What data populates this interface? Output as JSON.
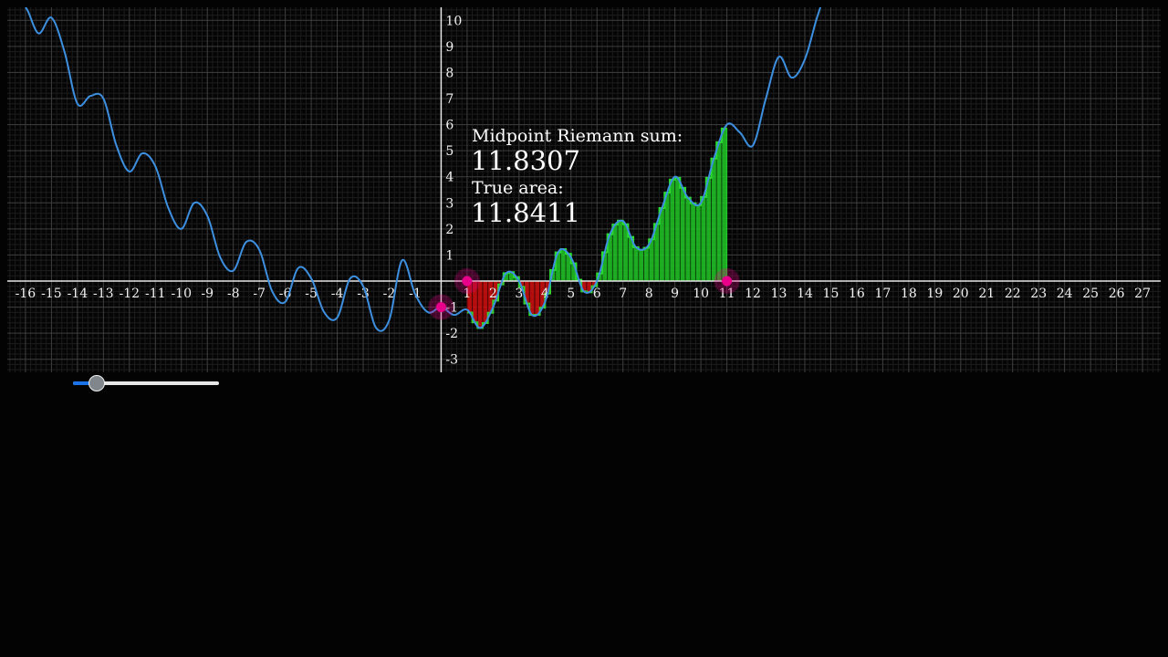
{
  "info": {
    "midpoint_label": "Midpoint Riemann sum:",
    "midpoint_value": "11.8307",
    "true_label": "True area:",
    "true_value": "11.8411"
  },
  "chart_data": {
    "type": "line",
    "title": "",
    "xlabel": "",
    "ylabel": "",
    "xlim": [
      -16.7,
      27.7
    ],
    "ylim": [
      -3.5,
      10.5
    ],
    "x_ticks": [
      -16,
      -15,
      -14,
      -13,
      -12,
      -11,
      -10,
      -9,
      -8,
      -7,
      -6,
      -5,
      -4,
      -3,
      -2,
      -1,
      1,
      2,
      3,
      4,
      5,
      6,
      7,
      8,
      9,
      10,
      11,
      12,
      13,
      14,
      15,
      16,
      17,
      18,
      19,
      20,
      21,
      22,
      23,
      24,
      25,
      26,
      27
    ],
    "y_ticks": [
      -3,
      -2,
      -1,
      1,
      2,
      3,
      4,
      5,
      6,
      7,
      8,
      9,
      10
    ],
    "grid": true,
    "curve_x": [
      -16,
      -15.5,
      -15,
      -14.5,
      -14,
      -13.5,
      -13,
      -12.5,
      -12,
      -11.5,
      -11,
      -10.5,
      -10,
      -9.5,
      -9,
      -8.5,
      -8,
      -7.5,
      -7,
      -6.5,
      -6,
      -5.5,
      -5,
      -4.5,
      -4,
      -3.5,
      -3,
      -2.5,
      -2,
      -1.5,
      -1,
      -0.5,
      0,
      0.5,
      1,
      1.5,
      2,
      2.5,
      3,
      3.5,
      4,
      4.5,
      5,
      5.5,
      6,
      6.5,
      7,
      7.5,
      8,
      8.5,
      9,
      9.5,
      10,
      10.5,
      11,
      11.5,
      12,
      12.5,
      13,
      13.5,
      14,
      14.5,
      15
    ],
    "curve_y": [
      10.5,
      9.5,
      10.1,
      8.8,
      6.8,
      7.1,
      7.0,
      5.2,
      4.2,
      4.9,
      4.4,
      2.8,
      2.0,
      3.0,
      2.5,
      0.9,
      0.4,
      1.5,
      1.2,
      -0.4,
      -0.8,
      0.5,
      0.1,
      -1.2,
      -1.4,
      0.1,
      -0.2,
      -1.8,
      -1.5,
      0.8,
      -0.5,
      -1.2,
      -1.0,
      -1.3,
      -1.1,
      -1.8,
      -1.0,
      0.3,
      0.0,
      -1.3,
      -0.8,
      1.1,
      0.9,
      -0.4,
      0.0,
      1.8,
      2.3,
      1.3,
      1.4,
      2.8,
      4.0,
      3.2,
      3.0,
      4.7,
      6.0,
      5.7,
      5.2,
      7.0,
      8.6,
      7.8,
      8.5,
      10.2,
      11.5
    ],
    "riemann_sum": {
      "method": "midpoint",
      "a": 1,
      "b": 11,
      "n": 50,
      "positive_color": "#22c928",
      "negative_color": "#d20f0f"
    },
    "curve_color": "#3d8fe0",
    "points": [
      {
        "x": 0,
        "y": -1
      },
      {
        "x": 1,
        "y": 0
      },
      {
        "x": 11,
        "y": 0
      }
    ],
    "point_color": "#e8008a"
  },
  "slider": {
    "value_fraction": 0.16,
    "fill_color": "#1a73e8"
  }
}
